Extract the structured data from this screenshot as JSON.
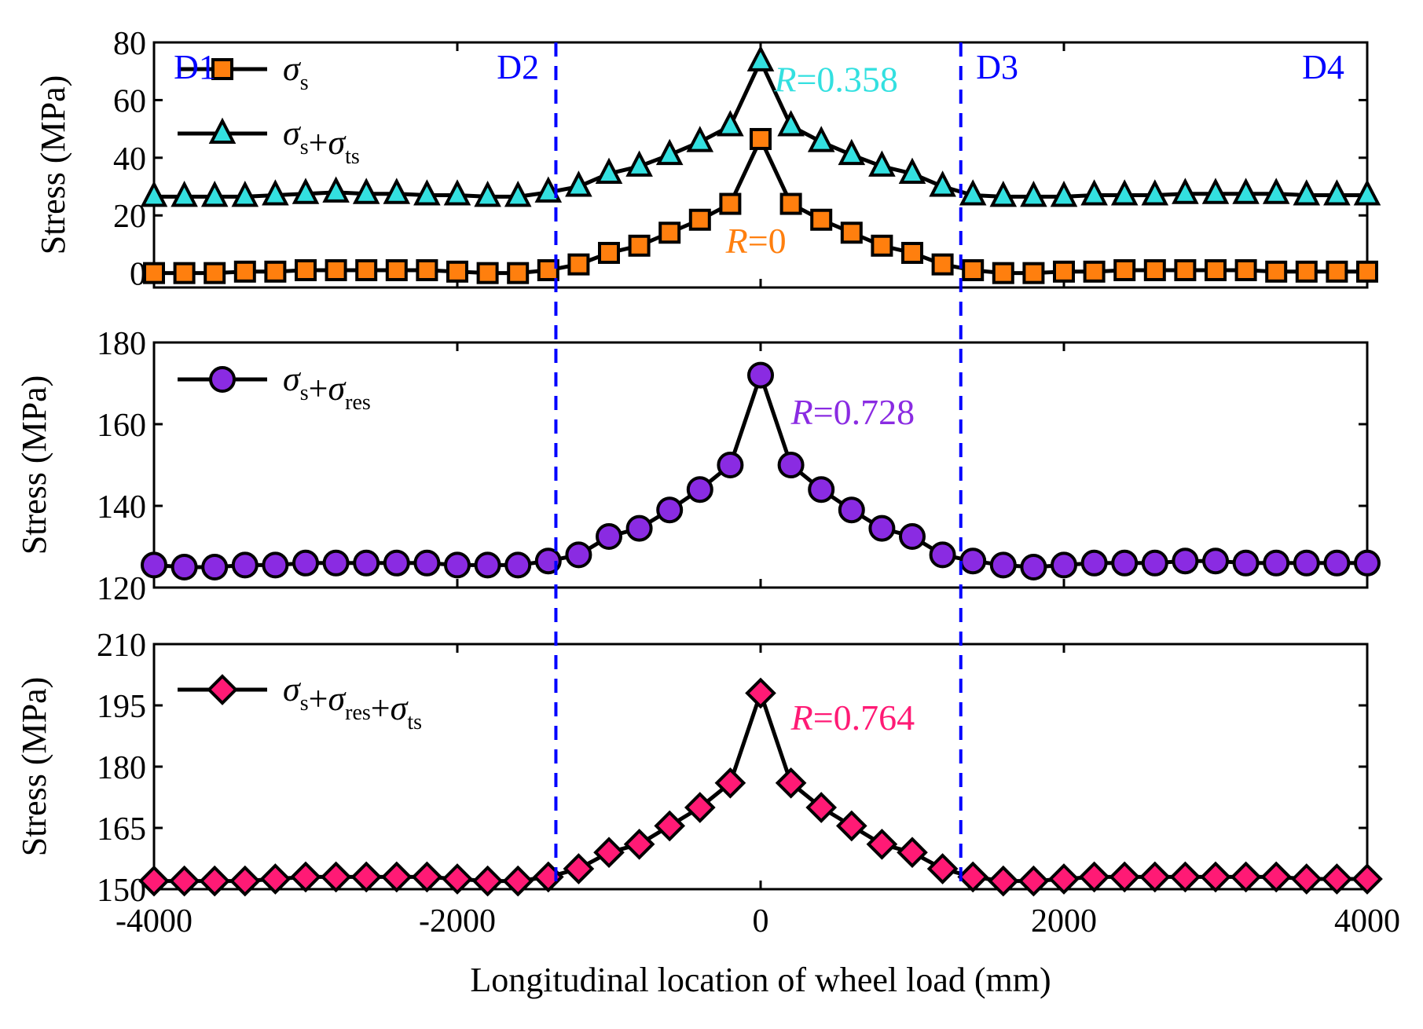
{
  "figure": {
    "xlabel": "Longitudinal location of wheel load (mm)",
    "x_ticks": [
      -4000,
      -2000,
      0,
      2000,
      4000
    ],
    "x_tick_labels": [
      "-4000",
      "-2000",
      "0",
      "2000",
      "4000"
    ],
    "xlim": [
      -4000,
      4000
    ],
    "divider_x": [
      -1350,
      1320
    ],
    "divider_color": "#0000ff",
    "zone_labels": [
      {
        "text": "D1",
        "x": -3870,
        "anchor": "start"
      },
      {
        "text": "D2",
        "x": -1600,
        "anchor": "middle"
      },
      {
        "text": "D3",
        "x": 1560,
        "anchor": "middle"
      },
      {
        "text": "D4",
        "x": 3710,
        "anchor": "middle"
      }
    ],
    "zone_label_color": "#0000ff"
  },
  "chart_data": [
    {
      "type": "line",
      "ylabel": "Stress (MPa)",
      "ylim": [
        -5,
        80
      ],
      "y_ticks": [
        0,
        20,
        40,
        60,
        80
      ],
      "y_tick_labels": [
        "0",
        "20",
        "40",
        "60",
        "80"
      ],
      "x": [
        -4000,
        -3800,
        -3600,
        -3400,
        -3200,
        -3000,
        -2800,
        -2600,
        -2400,
        -2200,
        -2000,
        -1800,
        -1600,
        -1400,
        -1200,
        -1000,
        -800,
        -600,
        -400,
        -200,
        0,
        200,
        400,
        600,
        800,
        1000,
        1200,
        1400,
        1600,
        1800,
        2000,
        2200,
        2400,
        2600,
        2800,
        3000,
        3200,
        3400,
        3600,
        3800,
        4000
      ],
      "series": [
        {
          "name_main": "σ",
          "name_sub": "s",
          "marker": "square",
          "color": "#ff7f0e",
          "values": [
            0,
            0,
            0,
            0.5,
            0.5,
            1,
            1,
            1,
            1,
            1,
            0.5,
            0,
            0,
            1,
            3,
            7,
            9.5,
            14,
            18.5,
            24,
            46.5,
            24,
            18.5,
            14,
            9.5,
            7,
            3,
            1,
            0,
            0,
            0.5,
            0.5,
            1,
            1,
            1,
            1,
            1,
            0.5,
            0.5,
            0.5,
            0.5
          ]
        },
        {
          "name_main": "σ",
          "name_sub": "s",
          "name_main2": "+σ",
          "name_sub2": "ts",
          "marker": "triangle",
          "color": "#33e0e0",
          "values": [
            26.5,
            26.5,
            26.5,
            26.5,
            27,
            27.5,
            28,
            27.5,
            27.5,
            27,
            27,
            26.5,
            26.5,
            28,
            30,
            34.5,
            37,
            41,
            45.5,
            51,
            73.5,
            51,
            45.5,
            41,
            37,
            34.5,
            30,
            27,
            26.5,
            26.5,
            26.5,
            27,
            27,
            27,
            27.5,
            27.5,
            27.5,
            27.5,
            27,
            27,
            27
          ]
        }
      ],
      "annotations": [
        {
          "italic": "R",
          "rest": "=0.358",
          "color": "#33e0e0",
          "x": 90,
          "y": 63
        },
        {
          "italic": "R",
          "rest": "=0",
          "color": "#ff7f0e",
          "x": -230,
          "y": 7
        }
      ]
    },
    {
      "type": "line",
      "ylabel": "Stress (MPa)",
      "ylim": [
        120,
        180
      ],
      "y_ticks": [
        120,
        140,
        160,
        180
      ],
      "y_tick_labels": [
        "120",
        "140",
        "160",
        "180"
      ],
      "x": [
        -4000,
        -3800,
        -3600,
        -3400,
        -3200,
        -3000,
        -2800,
        -2600,
        -2400,
        -2200,
        -2000,
        -1800,
        -1600,
        -1400,
        -1200,
        -1000,
        -800,
        -600,
        -400,
        -200,
        0,
        200,
        400,
        600,
        800,
        1000,
        1200,
        1400,
        1600,
        1800,
        2000,
        2200,
        2400,
        2600,
        2800,
        3000,
        3200,
        3400,
        3600,
        3800,
        4000
      ],
      "series": [
        {
          "name_main": "σ",
          "name_sub": "s",
          "name_main2": "+σ",
          "name_sub2": "res",
          "marker": "circle",
          "color": "#8a2be2",
          "values": [
            125.5,
            125,
            125,
            125.5,
            125.5,
            126,
            126,
            126,
            126,
            126,
            125.5,
            125.5,
            125.5,
            126.5,
            128,
            132.5,
            134.5,
            139,
            144,
            150,
            172,
            150,
            144,
            139,
            134.5,
            132.5,
            128,
            126.5,
            125.5,
            125,
            125.5,
            126,
            126,
            126,
            126.5,
            126.5,
            126,
            126,
            126,
            126,
            126
          ]
        }
      ],
      "annotations": [
        {
          "italic": "R",
          "rest": "=0.728",
          "color": "#8a2be2",
          "x": 200,
          "y": 160
        }
      ]
    },
    {
      "type": "line",
      "ylabel": "Stress (MPa)",
      "ylim": [
        150,
        210
      ],
      "y_ticks": [
        150,
        165,
        180,
        195,
        210
      ],
      "y_tick_labels": [
        "150",
        "165",
        "180",
        "195",
        "210"
      ],
      "x": [
        -4000,
        -3800,
        -3600,
        -3400,
        -3200,
        -3000,
        -2800,
        -2600,
        -2400,
        -2200,
        -2000,
        -1800,
        -1600,
        -1400,
        -1200,
        -1000,
        -800,
        -600,
        -400,
        -200,
        0,
        200,
        400,
        600,
        800,
        1000,
        1200,
        1400,
        1600,
        1800,
        2000,
        2200,
        2400,
        2600,
        2800,
        3000,
        3200,
        3400,
        3600,
        3800,
        4000
      ],
      "series": [
        {
          "name_main": "σ",
          "name_sub": "s",
          "name_main2": "+σ",
          "name_sub2": "res",
          "name_main3": "+σ",
          "name_sub3": "ts",
          "marker": "diamond",
          "color": "#ff1a75",
          "values": [
            152,
            152,
            152,
            152,
            152.5,
            153,
            153,
            153,
            153,
            153,
            152.5,
            152,
            152,
            153,
            155,
            159,
            161,
            165.5,
            170,
            176,
            198,
            176,
            170,
            165.5,
            161,
            159,
            155,
            153,
            152,
            152,
            152.5,
            153,
            153,
            153,
            153,
            153,
            153,
            153,
            152.5,
            152.5,
            152.5
          ]
        }
      ],
      "annotations": [
        {
          "italic": "R",
          "rest": "=0.764",
          "color": "#ff1a75",
          "x": 200,
          "y": 189
        }
      ]
    }
  ]
}
